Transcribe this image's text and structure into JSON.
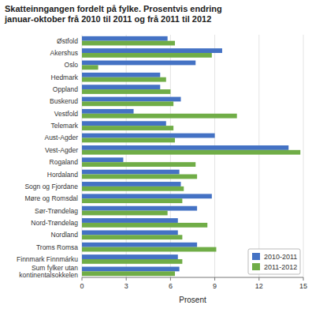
{
  "chart_data": {
    "type": "bar",
    "orientation": "horizontal",
    "title": "Skatteinngangen fordelt på fylke. Prosentvis endring\njanuar-oktober frå 2010 til 2011 og frå 2011 til 2012",
    "categories": [
      "Østfold",
      "Akershus",
      "Oslo",
      "Hedmark",
      "Oppland",
      "Buskerud",
      "Vestfold",
      "Telemark",
      "Aust-Agder",
      "Vest-Agder",
      "Rogaland",
      "Hordaland",
      "Sogn og Fjordane",
      "Møre og Romsdal",
      "Sør-Trøndelag",
      "Nord-Trøndelag",
      "Nordland",
      "Troms Romsa",
      "Finnmark Finnmárku",
      "Sum fylker utan\nkontinentalsokkelen"
    ],
    "series": [
      {
        "name": "2010-2011",
        "color": "#4472C4",
        "values": [
          5.8,
          9.5,
          7.7,
          5.3,
          5.3,
          6.7,
          3.5,
          5.7,
          9.0,
          14.0,
          2.8,
          6.6,
          6.7,
          8.8,
          7.8,
          6.5,
          6.5,
          7.8,
          6.5,
          6.6
        ]
      },
      {
        "name": "2011-2012",
        "color": "#70AD47",
        "values": [
          6.3,
          8.8,
          1.1,
          5.7,
          6.0,
          6.2,
          10.5,
          6.2,
          6.3,
          14.8,
          7.7,
          7.8,
          6.9,
          6.8,
          5.8,
          8.5,
          6.8,
          9.1,
          6.8,
          6.3
        ]
      }
    ],
    "xlabel": "Prosent",
    "xlim": [
      0,
      15
    ],
    "xticks": [
      0,
      3,
      6,
      9,
      12,
      15
    ],
    "grid": true,
    "legend": "lower right"
  }
}
